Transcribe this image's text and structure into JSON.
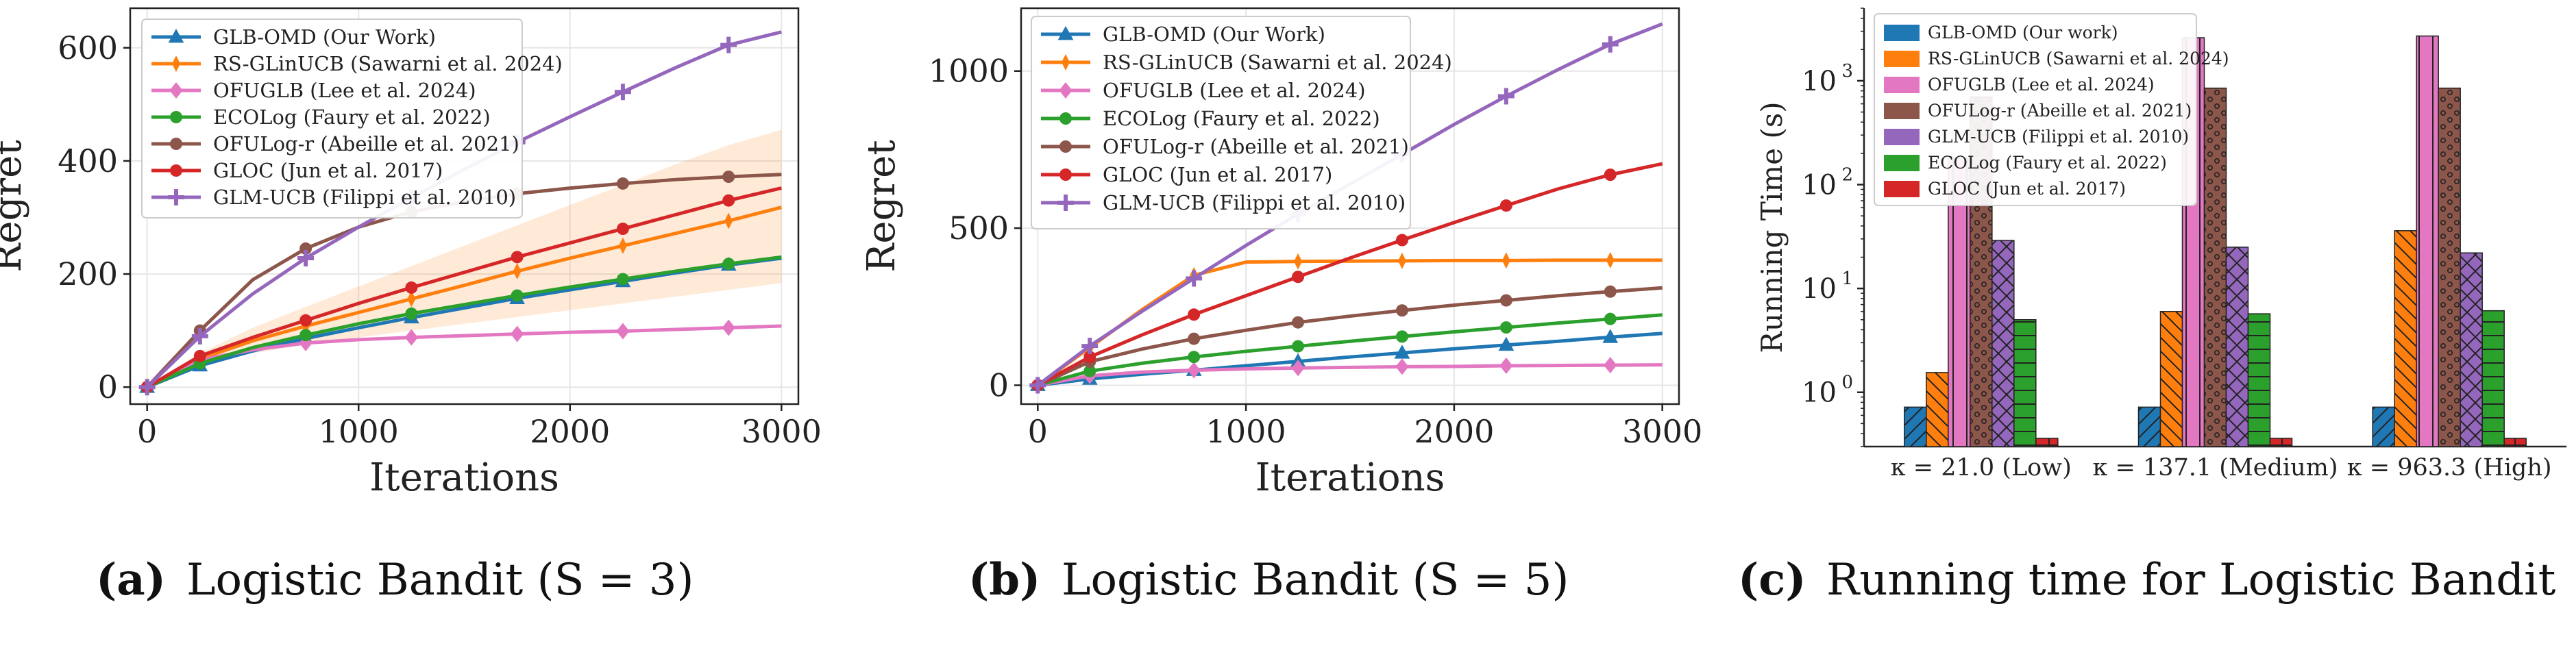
{
  "captions": [
    {
      "label": "(a)",
      "text": "Logistic Bandit (S = 3)"
    },
    {
      "label": "(b)",
      "text": "Logistic Bandit (S = 5)"
    },
    {
      "label": "(c)",
      "text": "Running time for Logistic Bandit"
    }
  ],
  "colors": {
    "GLB-OMD": "#1f77b4",
    "RS-GLinUCB": "#ff7f0e",
    "OFUGLB": "#e377c2",
    "ECOLog": "#2ca02c",
    "OFULog-r": "#8c564b",
    "GLOC": "#d62728",
    "GLM-UCB": "#9467bd"
  },
  "chart_data": [
    {
      "type": "line",
      "xlabel": "Iterations",
      "ylabel": "Regret",
      "xlim": [
        -80,
        3080
      ],
      "ylim": [
        -30,
        670
      ],
      "xticks": [
        0,
        1000,
        2000,
        3000
      ],
      "yticks": [
        0,
        200,
        400,
        600
      ],
      "grid": true,
      "legend_position": "top-left",
      "x": [
        0,
        250,
        500,
        750,
        1000,
        1250,
        1500,
        1750,
        2000,
        2250,
        2500,
        2750,
        3000
      ],
      "series": [
        {
          "key": "GLB-OMD",
          "name": "GLB-OMD (Our Work)",
          "marker": "triangle",
          "values": [
            0,
            38,
            64,
            86,
            105,
            123,
            140,
            157,
            172,
            187,
            202,
            216,
            228
          ]
        },
        {
          "key": "RS-GLinUCB",
          "name": "RS-GLinUCB (Sawarni et al. 2024)",
          "marker": "thin-diamond",
          "values": [
            0,
            50,
            82,
            108,
            132,
            156,
            180,
            205,
            228,
            250,
            272,
            294,
            318
          ],
          "band": [
            [
              0,
              0
            ],
            [
              40,
              60
            ],
            [
              60,
              105
            ],
            [
              75,
              142
            ],
            [
              88,
              178
            ],
            [
              100,
              214
            ],
            [
              112,
              250
            ],
            [
              124,
              286
            ],
            [
              136,
              322
            ],
            [
              148,
              358
            ],
            [
              160,
              394
            ],
            [
              172,
              428
            ],
            [
              184,
              455
            ]
          ]
        },
        {
          "key": "OFUGLB",
          "name": "OFUGLB (Lee et al. 2024)",
          "marker": "diamond",
          "values": [
            0,
            48,
            66,
            78,
            84,
            88,
            91,
            94,
            97,
            99,
            102,
            105,
            108
          ]
        },
        {
          "key": "ECOLog",
          "name": "ECOLog (Faury et al. 2022)",
          "marker": "circle",
          "values": [
            0,
            42,
            70,
            92,
            112,
            130,
            146,
            162,
            177,
            191,
            205,
            218,
            230
          ]
        },
        {
          "key": "OFULog-r",
          "name": "OFULog-r (Abeille et al. 2021)",
          "marker": "circle",
          "values": [
            0,
            100,
            190,
            245,
            283,
            310,
            328,
            342,
            352,
            360,
            367,
            372,
            376
          ]
        },
        {
          "key": "GLOC",
          "name": "GLOC (Jun et al. 2017)",
          "marker": "circle",
          "values": [
            0,
            55,
            88,
            118,
            148,
            176,
            203,
            230,
            255,
            280,
            305,
            330,
            352
          ]
        },
        {
          "key": "GLM-UCB",
          "name": "GLM-UCB (Filippi et al. 2010)",
          "marker": "plus",
          "values": [
            0,
            90,
            165,
            228,
            283,
            335,
            385,
            433,
            478,
            522,
            565,
            605,
            628
          ]
        }
      ]
    },
    {
      "type": "line",
      "xlabel": "Iterations",
      "ylabel": "Regret",
      "xlim": [
        -80,
        3080
      ],
      "ylim": [
        -60,
        1200
      ],
      "xticks": [
        0,
        1000,
        2000,
        3000
      ],
      "yticks": [
        0,
        500,
        1000
      ],
      "grid": true,
      "legend_position": "top-left",
      "x": [
        0,
        250,
        500,
        750,
        1000,
        1250,
        1500,
        1750,
        2000,
        2250,
        2500,
        2750,
        3000
      ],
      "series": [
        {
          "key": "GLB-OMD",
          "name": "GLB-OMD (Our Work)",
          "marker": "triangle",
          "values": [
            0,
            20,
            35,
            48,
            62,
            76,
            90,
            103,
            116,
            128,
            140,
            153,
            165
          ]
        },
        {
          "key": "RS-GLinUCB",
          "name": "RS-GLinUCB (Sawarni et al. 2024)",
          "marker": "thin-diamond",
          "values": [
            0,
            120,
            240,
            350,
            392,
            394,
            395,
            396,
            397,
            397,
            398,
            398,
            398
          ]
        },
        {
          "key": "OFUGLB",
          "name": "OFUGLB (Lee et al. 2024)",
          "marker": "diamond",
          "values": [
            0,
            30,
            42,
            48,
            52,
            55,
            57,
            59,
            60,
            62,
            63,
            64,
            65
          ]
        },
        {
          "key": "ECOLog",
          "name": "ECOLog (Faury et al. 2022)",
          "marker": "circle",
          "values": [
            0,
            45,
            70,
            90,
            108,
            124,
            140,
            155,
            170,
            184,
            198,
            211,
            224
          ]
        },
        {
          "key": "OFULog-r",
          "name": "OFULog-r (Abeille et al. 2021)",
          "marker": "circle",
          "values": [
            0,
            75,
            115,
            148,
            175,
            200,
            220,
            238,
            255,
            270,
            285,
            298,
            310
          ]
        },
        {
          "key": "GLOC",
          "name": "GLOC (Jun et al. 2017)",
          "marker": "circle",
          "values": [
            0,
            90,
            160,
            225,
            285,
            345,
            405,
            462,
            518,
            572,
            625,
            670,
            705
          ]
        },
        {
          "key": "GLM-UCB",
          "name": "GLM-UCB (Filippi et al. 2010)",
          "marker": "plus",
          "values": [
            0,
            125,
            235,
            340,
            445,
            545,
            640,
            735,
            830,
            920,
            1005,
            1085,
            1150
          ]
        }
      ]
    },
    {
      "type": "bar",
      "ylabel": "Running Time (s)",
      "yscale": "log",
      "ylim": [
        0.3,
        5000
      ],
      "yticks": [
        1,
        10,
        100,
        1000
      ],
      "ytick_labels": [
        {
          "base": "10",
          "exp": "0"
        },
        {
          "base": "10",
          "exp": "1"
        },
        {
          "base": "10",
          "exp": "2"
        },
        {
          "base": "10",
          "exp": "3"
        }
      ],
      "categories": [
        "κ = 21.0 (Low)",
        "κ = 137.1 (Medium)",
        "κ = 963.3 (High)"
      ],
      "legend_position": "top-left",
      "series": [
        {
          "key": "GLB-OMD",
          "name": "GLB-OMD (Our work)",
          "hatch": "diag-left",
          "values": [
            0.72,
            0.72,
            0.72
          ]
        },
        {
          "key": "RS-GLinUCB",
          "name": "RS-GLinUCB (Sawarni et al. 2024)",
          "hatch": "diag-right",
          "values": [
            1.55,
            6.0,
            36.0
          ]
        },
        {
          "key": "OFUGLB",
          "name": "OFUGLB (Lee et al. 2024)",
          "hatch": "vertical",
          "values": [
            180,
            2600,
            2700
          ]
        },
        {
          "key": "OFULog-r",
          "name": "OFULog-r (Abeille et al. 2021)",
          "hatch": "dots",
          "values": [
            700,
            850,
            850
          ]
        },
        {
          "key": "GLM-UCB",
          "name": "GLM-UCB (Filippi et al. 2010)",
          "hatch": "cross",
          "values": [
            29,
            25,
            22
          ]
        },
        {
          "key": "ECOLog",
          "name": "ECOLog (Faury et al. 2022)",
          "hatch": "horizontal",
          "values": [
            5.0,
            5.7,
            6.1
          ]
        },
        {
          "key": "GLOC",
          "name": "GLOC (Jun et al. 2017)",
          "hatch": "grid",
          "values": [
            0.36,
            0.36,
            0.36
          ]
        }
      ]
    }
  ]
}
